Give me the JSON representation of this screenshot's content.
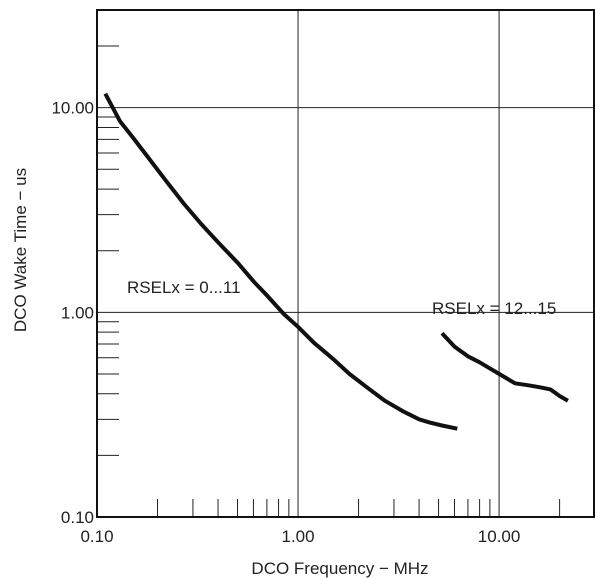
{
  "chart_data": {
    "type": "line",
    "xscale": "log",
    "yscale": "log",
    "xlim": [
      0.1,
      30
    ],
    "ylim": [
      0.1,
      30
    ],
    "grid": true,
    "xlabel": "DCO Frequency − MHz",
    "ylabel": "DCO Wake Time − us",
    "x_ticks": [
      {
        "value": 0.1,
        "label": "0.10"
      },
      {
        "value": 1,
        "label": "1.00"
      },
      {
        "value": 10,
        "label": "10.00"
      }
    ],
    "y_ticks": [
      {
        "value": 0.1,
        "label": "0.10"
      },
      {
        "value": 1,
        "label": "1.00"
      },
      {
        "value": 10,
        "label": "10.00"
      }
    ],
    "annotations": [
      {
        "text": "RSELx = 0...11",
        "x": 0.12,
        "y": 1.22
      },
      {
        "text": "RSELx = 12...15",
        "x": 5.2,
        "y": 1.0
      }
    ],
    "series": [
      {
        "x": [
          0.11,
          0.13,
          0.15,
          0.18,
          0.22,
          0.27,
          0.33,
          0.4,
          0.5,
          0.6,
          0.7,
          0.85,
          1.0,
          1.2,
          1.5,
          1.8,
          2.2,
          2.7,
          3.3,
          4.0,
          4.5,
          5.2,
          6.2
        ],
        "values": [
          11.7,
          8.6,
          7.2,
          5.7,
          4.4,
          3.4,
          2.7,
          2.2,
          1.75,
          1.42,
          1.21,
          0.98,
          0.85,
          0.71,
          0.59,
          0.5,
          0.43,
          0.37,
          0.33,
          0.3,
          0.29,
          0.28,
          0.27
        ]
      },
      {
        "x": [
          5.2,
          6.0,
          7.0,
          8.0,
          10.0,
          12.0,
          14.0,
          16.0,
          18.0,
          20.0,
          22.0
        ],
        "values": [
          0.79,
          0.68,
          0.61,
          0.57,
          0.5,
          0.45,
          0.44,
          0.43,
          0.42,
          0.39,
          0.37
        ]
      }
    ]
  }
}
